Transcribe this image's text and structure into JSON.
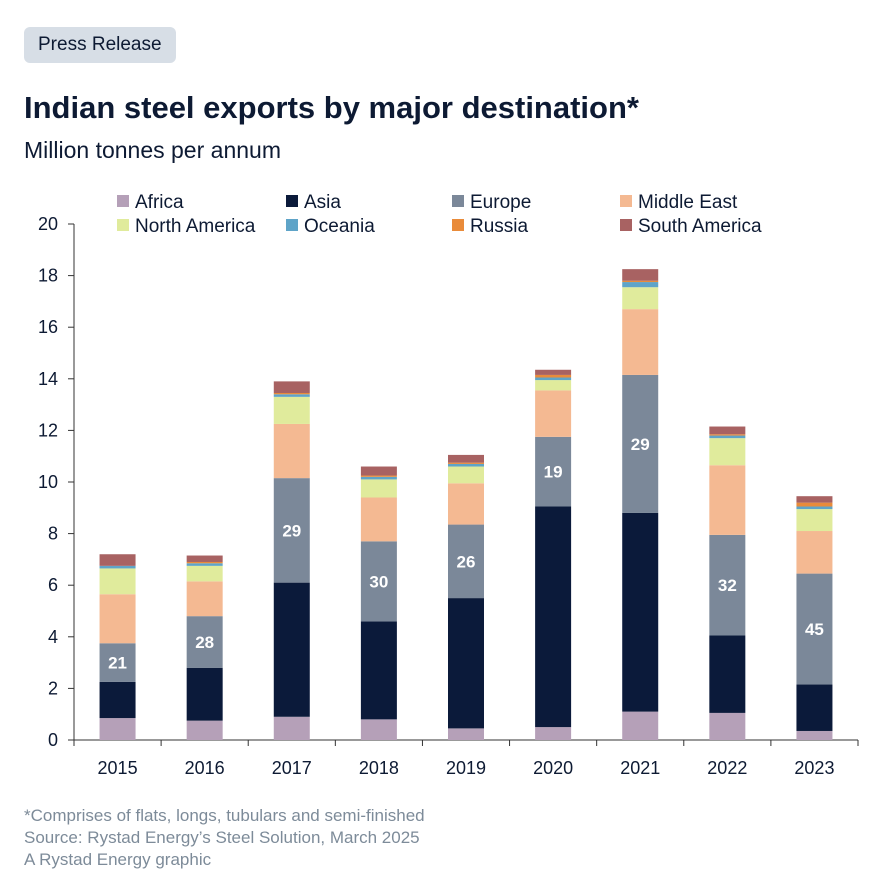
{
  "header": {
    "badge": "Press Release",
    "title": "Indian steel exports by major destination*",
    "subtitle": "Million tonnes per annum"
  },
  "footer": {
    "note": "*Comprises of flats, longs, tubulars and semi-finished",
    "source": "Source: Rystad Energy’s Steel Solution, March 2025",
    "credit": "A Rystad Energy graphic"
  },
  "chart_data": {
    "type": "bar",
    "stacked": true,
    "categories": [
      "2015",
      "2016",
      "2017",
      "2018",
      "2019",
      "2020",
      "2021",
      "2022",
      "2023"
    ],
    "ylim": [
      0,
      20
    ],
    "yticks": [
      0,
      2,
      4,
      6,
      8,
      10,
      12,
      14,
      16,
      18,
      20
    ],
    "legend_position": "top",
    "grid": false,
    "series": [
      {
        "name": "Africa",
        "color": "#b5a0b8",
        "values": [
          0.85,
          0.75,
          0.9,
          0.8,
          0.45,
          0.5,
          1.1,
          1.05,
          0.35
        ]
      },
      {
        "name": "Asia",
        "color": "#0b1a3a",
        "values": [
          1.4,
          2.05,
          5.2,
          3.8,
          5.05,
          8.55,
          7.7,
          3.0,
          1.8
        ]
      },
      {
        "name": "Europe",
        "color": "#7b8899",
        "values": [
          1.5,
          2.0,
          4.05,
          3.1,
          2.85,
          2.7,
          5.35,
          3.9,
          4.3
        ]
      },
      {
        "name": "Middle  East",
        "color": "#f4b992",
        "values": [
          1.9,
          1.35,
          2.1,
          1.7,
          1.6,
          1.8,
          2.55,
          2.7,
          1.65
        ]
      },
      {
        "name": "North America",
        "color": "#e0eb9c",
        "values": [
          1.0,
          0.6,
          1.05,
          0.7,
          0.65,
          0.4,
          0.85,
          1.05,
          0.85
        ]
      },
      {
        "name": "Oceania",
        "color": "#5fa4c8",
        "values": [
          0.1,
          0.1,
          0.1,
          0.1,
          0.1,
          0.1,
          0.2,
          0.1,
          0.1
        ]
      },
      {
        "name": "Russia",
        "color": "#e98b3a",
        "values": [
          0.0,
          0.05,
          0.05,
          0.05,
          0.05,
          0.1,
          0.05,
          0.05,
          0.15
        ]
      },
      {
        "name": "South America",
        "color": "#a86262",
        "values": [
          0.45,
          0.25,
          0.45,
          0.35,
          0.3,
          0.2,
          0.45,
          0.3,
          0.25
        ]
      }
    ],
    "annotations": [
      {
        "category": "2015",
        "series": "Europe",
        "label": "21"
      },
      {
        "category": "2016",
        "series": "Europe",
        "label": "28"
      },
      {
        "category": "2017",
        "series": "Europe",
        "label": "29"
      },
      {
        "category": "2018",
        "series": "Europe",
        "label": "30"
      },
      {
        "category": "2019",
        "series": "Europe",
        "label": "26"
      },
      {
        "category": "2020",
        "series": "Europe",
        "label": "19"
      },
      {
        "category": "2021",
        "series": "Europe",
        "label": "29"
      },
      {
        "category": "2022",
        "series": "Europe",
        "label": "32"
      },
      {
        "category": "2023",
        "series": "Europe",
        "label": "45"
      }
    ]
  }
}
